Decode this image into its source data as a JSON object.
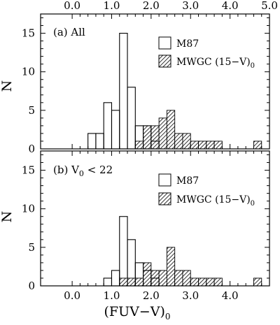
{
  "chart_data": [
    {
      "type": "bar",
      "panel_label": "(a) All",
      "ylabel": "N",
      "ylim": [
        0,
        17.5
      ],
      "yticks": [
        "0",
        "5",
        "10",
        "15"
      ],
      "xlim": [
        -0.8,
        5.0
      ],
      "xticks": [
        "0.0",
        "1.0",
        "2.0",
        "3.0",
        "4.0",
        "5.0"
      ],
      "bin_edges": [
        0.2,
        0.4,
        0.6,
        0.8,
        1.0,
        1.2,
        1.4,
        1.6,
        1.8,
        2.0,
        2.2,
        2.4,
        2.6,
        2.8,
        3.0,
        3.2,
        3.4,
        3.6,
        3.8,
        4.0,
        4.2,
        4.4,
        4.6,
        4.8
      ],
      "series": [
        {
          "name": "M87",
          "style": "open",
          "values": [
            0,
            2,
            2,
            6,
            5,
            15,
            8,
            3,
            3,
            1,
            0,
            0,
            0,
            0,
            0,
            0,
            0,
            0,
            0,
            0,
            0,
            0,
            0
          ]
        },
        {
          "name": "MWGC (15-V)0",
          "style": "hatched",
          "values": [
            0,
            0,
            0,
            0,
            0,
            0,
            0,
            1,
            3,
            3,
            4,
            5,
            2,
            2,
            1,
            1,
            1,
            1,
            0,
            0,
            0,
            0,
            1
          ]
        }
      ]
    },
    {
      "type": "bar",
      "panel_label": "(b) V0 < 22",
      "ylabel": "N",
      "ylim": [
        0,
        17.5
      ],
      "yticks": [
        "0",
        "5",
        "10",
        "15"
      ],
      "xlim": [
        -0.8,
        5.0
      ],
      "xticks": [
        "0.0",
        "1.0",
        "2.0",
        "3.0",
        "4.0",
        "5.0"
      ],
      "xlabel": "(FUV-V)0",
      "bin_edges": [
        0.2,
        0.4,
        0.6,
        0.8,
        1.0,
        1.2,
        1.4,
        1.6,
        1.8,
        2.0,
        2.2,
        2.4,
        2.6,
        2.8,
        3.0,
        3.2,
        3.4,
        3.6,
        3.8,
        4.0,
        4.2,
        4.4,
        4.6,
        4.8
      ],
      "series": [
        {
          "name": "M87",
          "style": "open",
          "values": [
            0,
            0,
            0,
            1,
            2,
            9,
            6,
            3,
            2,
            1,
            0,
            0,
            0,
            0,
            0,
            0,
            0,
            0,
            0,
            0,
            0,
            0,
            0
          ]
        },
        {
          "name": "MWGC (15-V)0",
          "style": "hatched",
          "values": [
            0,
            0,
            0,
            0,
            0,
            1,
            1,
            1,
            3,
            2,
            2,
            5,
            2,
            2,
            1,
            1,
            1,
            1,
            0,
            0,
            0,
            0,
            1
          ]
        }
      ]
    }
  ]
}
